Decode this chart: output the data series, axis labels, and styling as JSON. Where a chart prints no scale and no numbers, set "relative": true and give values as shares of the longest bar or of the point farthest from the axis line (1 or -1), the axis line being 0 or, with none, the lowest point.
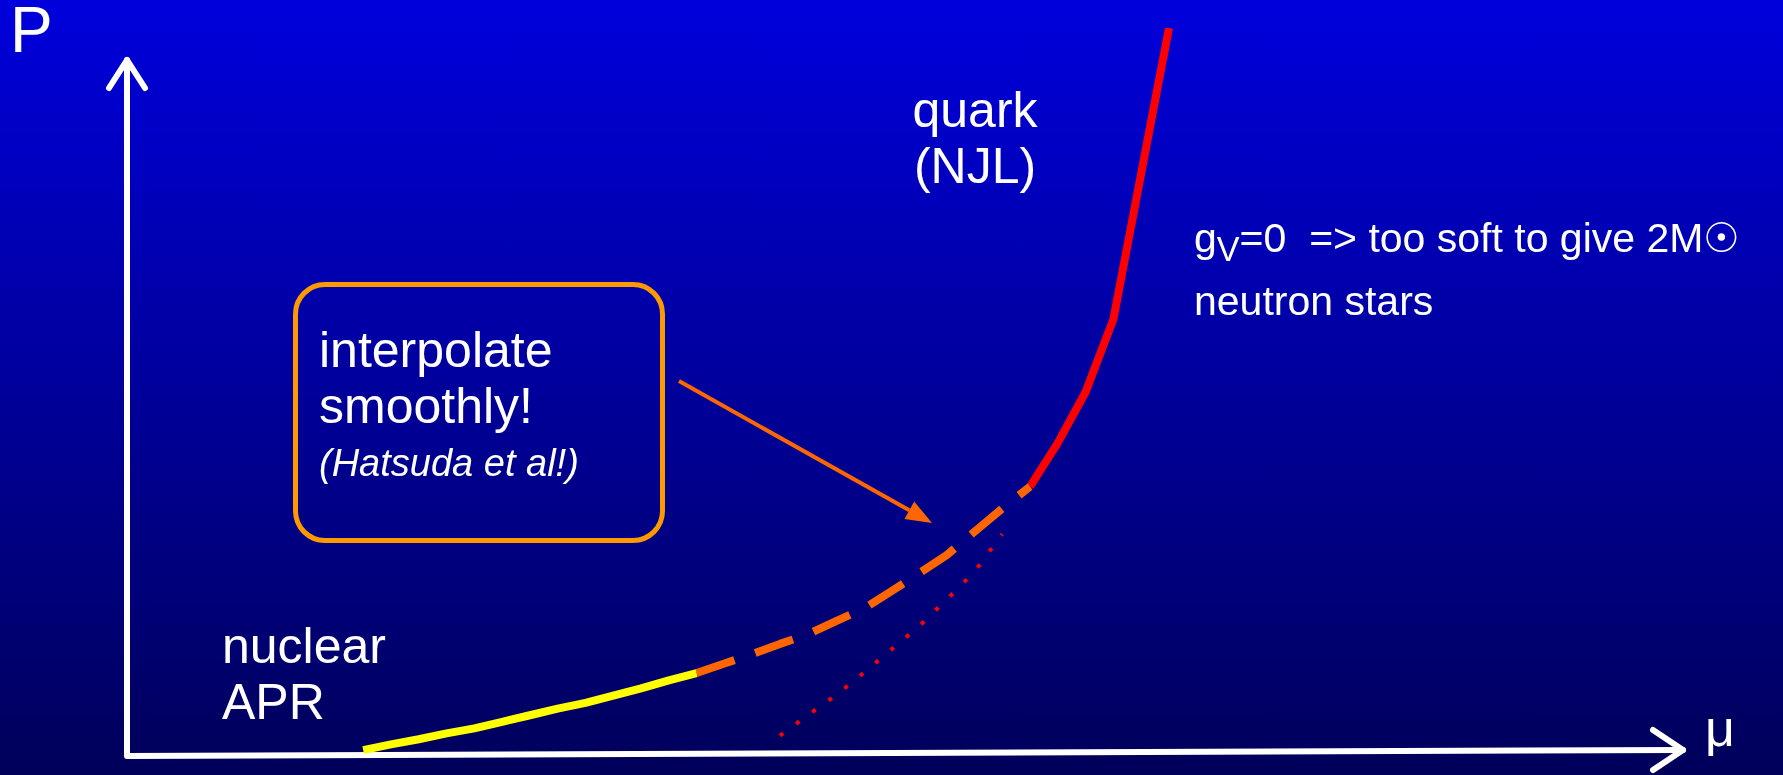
{
  "chart_data": {
    "type": "line",
    "relative": true,
    "xlabel": "μ",
    "ylabel": "P",
    "tick_labels": false,
    "marker": "none",
    "categories": [
      null,
      null,
      null,
      null,
      null,
      null,
      null,
      null,
      null,
      null,
      null,
      null,
      null,
      null,
      null,
      null,
      null,
      null,
      null,
      null,
      null,
      null,
      null,
      null,
      null,
      null,
      null,
      null,
      null,
      null,
      null,
      null,
      null,
      null,
      null,
      null,
      null,
      null,
      null,
      null,
      null,
      null,
      null,
      null,
      null,
      null,
      null,
      null,
      null,
      null,
      null,
      null,
      null,
      null,
      null,
      null
    ],
    "series": [
      {
        "color": "#ffff00",
        "line_style": "solid",
        "values": [
          null,
          null,
          null,
          null,
          null,
          null,
          null,
          null,
          0.008,
          0.016,
          0.023,
          0.031,
          0.038,
          0.047,
          0.056,
          0.065,
          0.073,
          0.083,
          0.093,
          0.104,
          0.114,
          null,
          null,
          null,
          null,
          null,
          null,
          null,
          null,
          null,
          null,
          null,
          null,
          null,
          null,
          null,
          null,
          null,
          null,
          null,
          null,
          null,
          null,
          null,
          null,
          null,
          null,
          null,
          null,
          null,
          null,
          null,
          null,
          null,
          null,
          null
        ]
      },
      {
        "color": "#ff6600",
        "line_style": "dashed",
        "values": [
          null,
          null,
          null,
          null,
          null,
          null,
          null,
          null,
          null,
          null,
          null,
          null,
          null,
          null,
          null,
          null,
          null,
          null,
          null,
          null,
          0.114,
          0.127,
          0.14,
          0.154,
          0.167,
          0.185,
          0.202,
          0.226,
          0.251,
          0.276,
          0.308,
          0.34,
          0.37,
          null,
          null,
          null,
          null,
          null,
          null,
          null,
          null,
          null,
          null,
          null,
          null,
          null,
          null,
          null,
          null,
          null,
          null,
          null,
          null,
          null,
          null,
          null
        ]
      },
      {
        "color": "#ff0000",
        "line_style": "solid",
        "values": [
          null,
          null,
          null,
          null,
          null,
          null,
          null,
          null,
          null,
          null,
          null,
          null,
          null,
          null,
          null,
          null,
          null,
          null,
          null,
          null,
          null,
          null,
          null,
          null,
          null,
          null,
          null,
          null,
          null,
          null,
          null,
          null,
          0.37,
          0.43,
          0.5,
          0.6,
          0.8,
          1.0,
          null,
          null,
          null,
          null,
          null,
          null,
          null,
          null,
          null,
          null,
          null,
          null,
          null,
          null,
          null,
          null,
          null,
          null
        ]
      },
      {
        "color": "#ff0000",
        "line_style": "dotted",
        "values": [
          null,
          null,
          null,
          null,
          null,
          null,
          null,
          null,
          null,
          null,
          null,
          null,
          null,
          null,
          null,
          null,
          null,
          null,
          null,
          null,
          null,
          null,
          null,
          0.028,
          0.056,
          0.083,
          0.114,
          0.146,
          0.178,
          0.215,
          0.253,
          0.305,
          null,
          null,
          null,
          null,
          null,
          null,
          null,
          null,
          null,
          null,
          null,
          null,
          null,
          null,
          null,
          null,
          null,
          null,
          null,
          null,
          null,
          null,
          null,
          null
        ]
      }
    ],
    "annotations": [
      "nuclear APR",
      "quark (NJL)",
      "interpolate smoothly!",
      "(Hatsuda et al!)",
      "g$_{V}$=0  => too soft to give 2M☉ neutron stars"
    ]
  }
}
